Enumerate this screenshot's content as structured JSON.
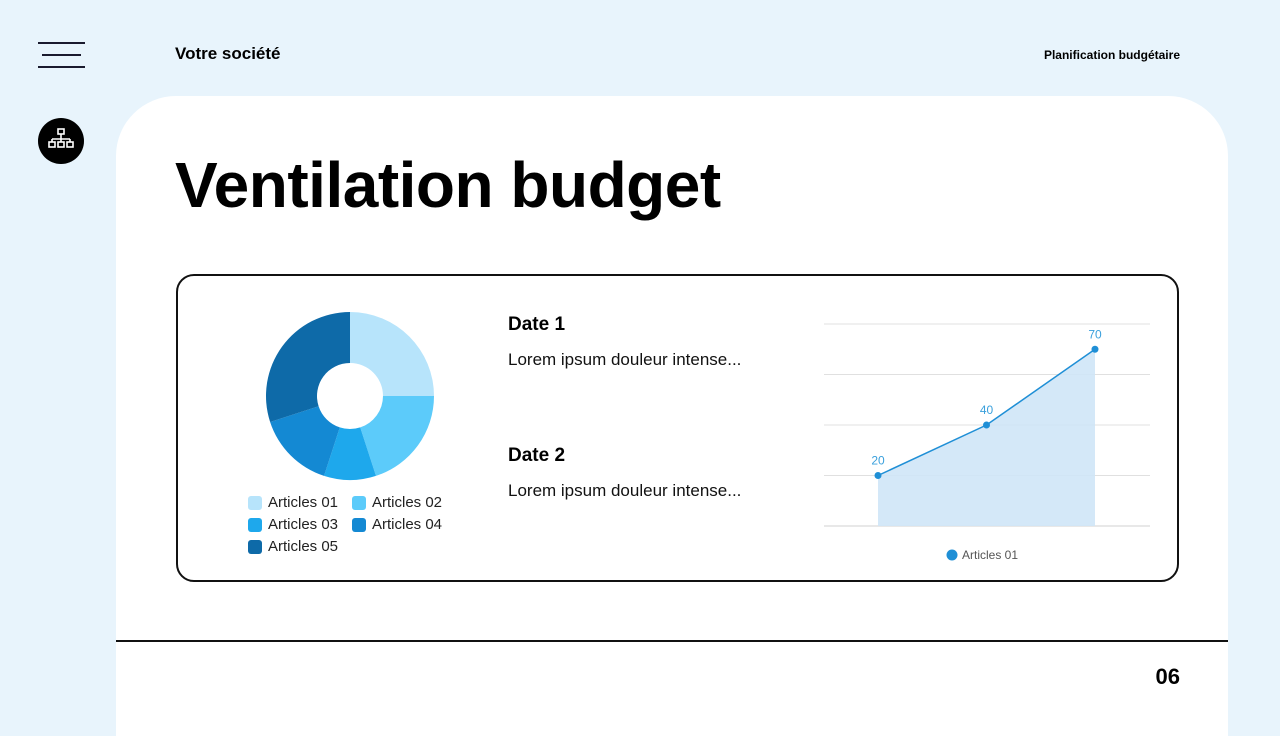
{
  "header": {
    "company": "Votre société",
    "subtitle": "Planification budgétaire"
  },
  "slide": {
    "title": "Ventilation budget",
    "page_number": "06"
  },
  "dates": [
    {
      "title": "Date 1",
      "text": "Lorem ipsum douleur intense..."
    },
    {
      "title": "Date 2",
      "text": "Lorem ipsum douleur intense..."
    }
  ],
  "icons": {
    "menu": "hamburger-menu-icon",
    "side": "org-chart-icon"
  },
  "chart_data": [
    {
      "type": "pie",
      "variant": "donut",
      "categories": [
        "Articles 01",
        "Articles 02",
        "Articles 03",
        "Articles 04",
        "Articles 05"
      ],
      "values": [
        25,
        20,
        10,
        15,
        30
      ],
      "colors": [
        "#b7e4fb",
        "#5ccbfa",
        "#1ea8ec",
        "#1489d3",
        "#0e6aa8"
      ],
      "legend_position": "bottom"
    },
    {
      "type": "area",
      "series": [
        {
          "name": "Articles 01",
          "values": [
            20,
            40,
            70
          ]
        }
      ],
      "x": [
        1,
        2,
        3
      ],
      "ylim": [
        0,
        80
      ],
      "grid": true,
      "data_labels": [
        "20",
        "40",
        "70"
      ],
      "line_color": "#1f8fd6",
      "fill_color": "#cfe6f7",
      "legend_position": "bottom"
    }
  ]
}
